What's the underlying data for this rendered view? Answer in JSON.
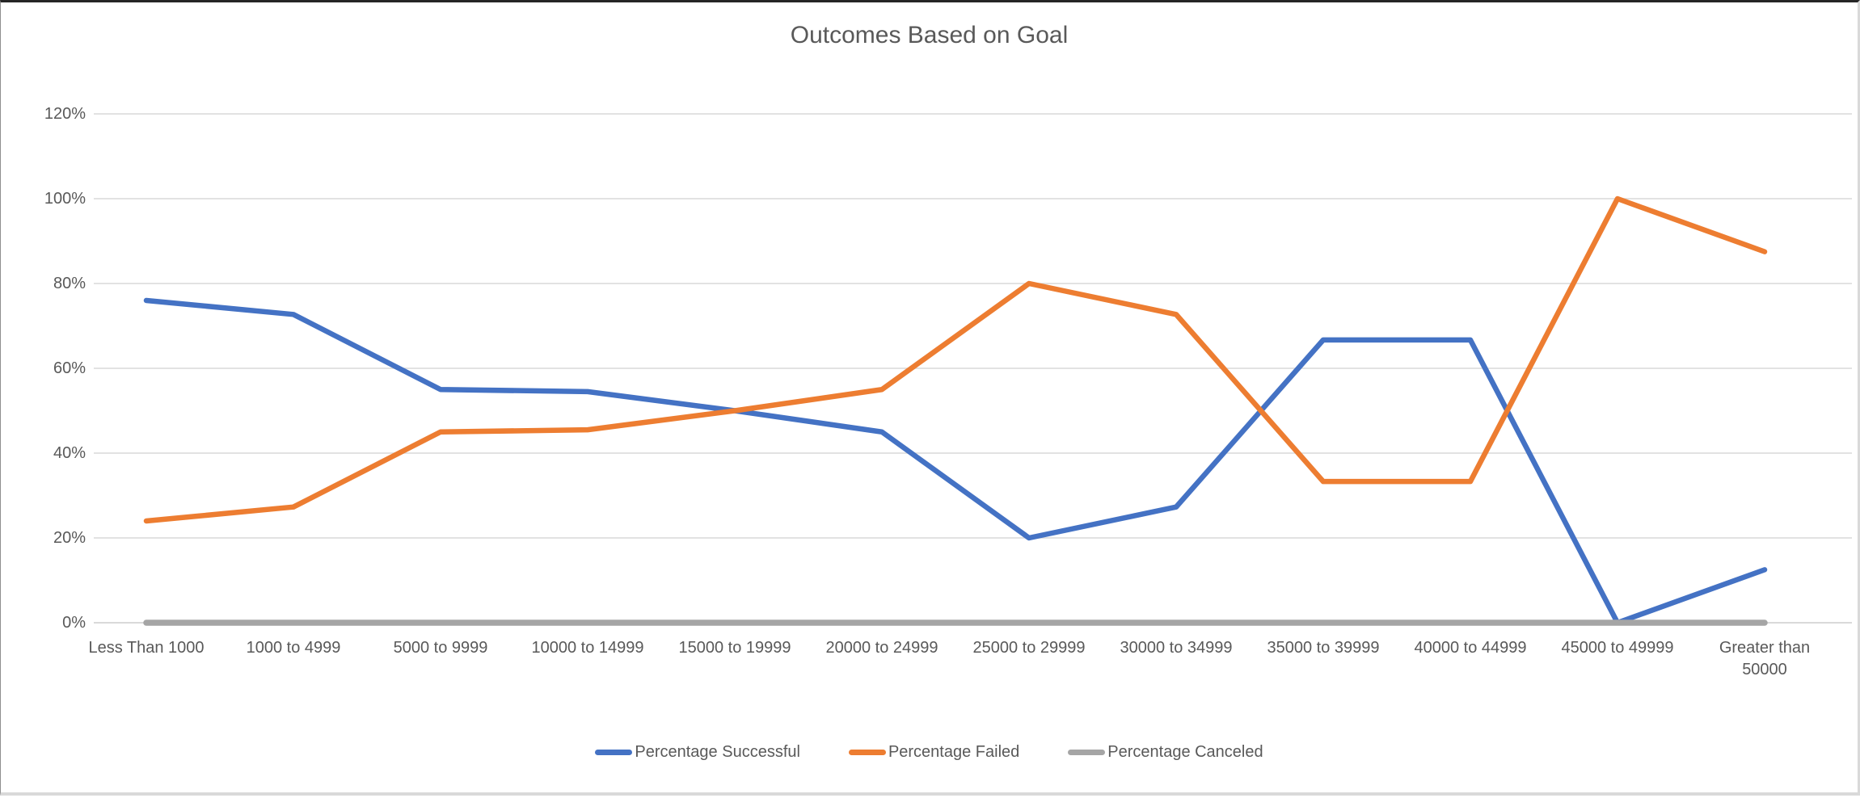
{
  "chart": {
    "title": "Outcomes Based on Goal"
  },
  "chart_data": {
    "type": "line",
    "title": "Outcomes Based on Goal",
    "categories": [
      "Less Than 1000",
      "1000 to 4999",
      "5000 to 9999",
      "10000 to 14999",
      "15000 to 19999",
      "20000 to 24999",
      "25000 to 29999",
      "30000 to 34999",
      "35000 to 39999",
      "40000 to 44999",
      "45000 to 49999",
      "Greater than 50000"
    ],
    "series": [
      {
        "name": "Percentage Successful",
        "color": "#4472C4",
        "values": [
          76,
          72.7,
          55,
          54.5,
          50,
          45,
          20,
          27.3,
          66.7,
          66.7,
          0,
          12.5
        ]
      },
      {
        "name": "Percentage Failed",
        "color": "#ED7D31",
        "values": [
          24,
          27.3,
          45,
          45.5,
          50,
          55,
          80,
          72.7,
          33.3,
          33.3,
          100,
          87.5
        ]
      },
      {
        "name": "Percentage Canceled",
        "color": "#A5A5A5",
        "values": [
          0,
          0,
          0,
          0,
          0,
          0,
          0,
          0,
          0,
          0,
          0,
          0
        ]
      }
    ],
    "y_ticks": [
      "0%",
      "20%",
      "40%",
      "60%",
      "80%",
      "100%",
      "120%"
    ],
    "y_tick_values": [
      0,
      20,
      40,
      60,
      80,
      100,
      120
    ],
    "ylim": [
      0,
      120
    ],
    "xlabel": "",
    "ylabel": "",
    "grid": true,
    "legend_position": "bottom"
  },
  "colors": {
    "grid": "#D9D9D9",
    "text": "#595959",
    "background": "#FFFFFF"
  }
}
